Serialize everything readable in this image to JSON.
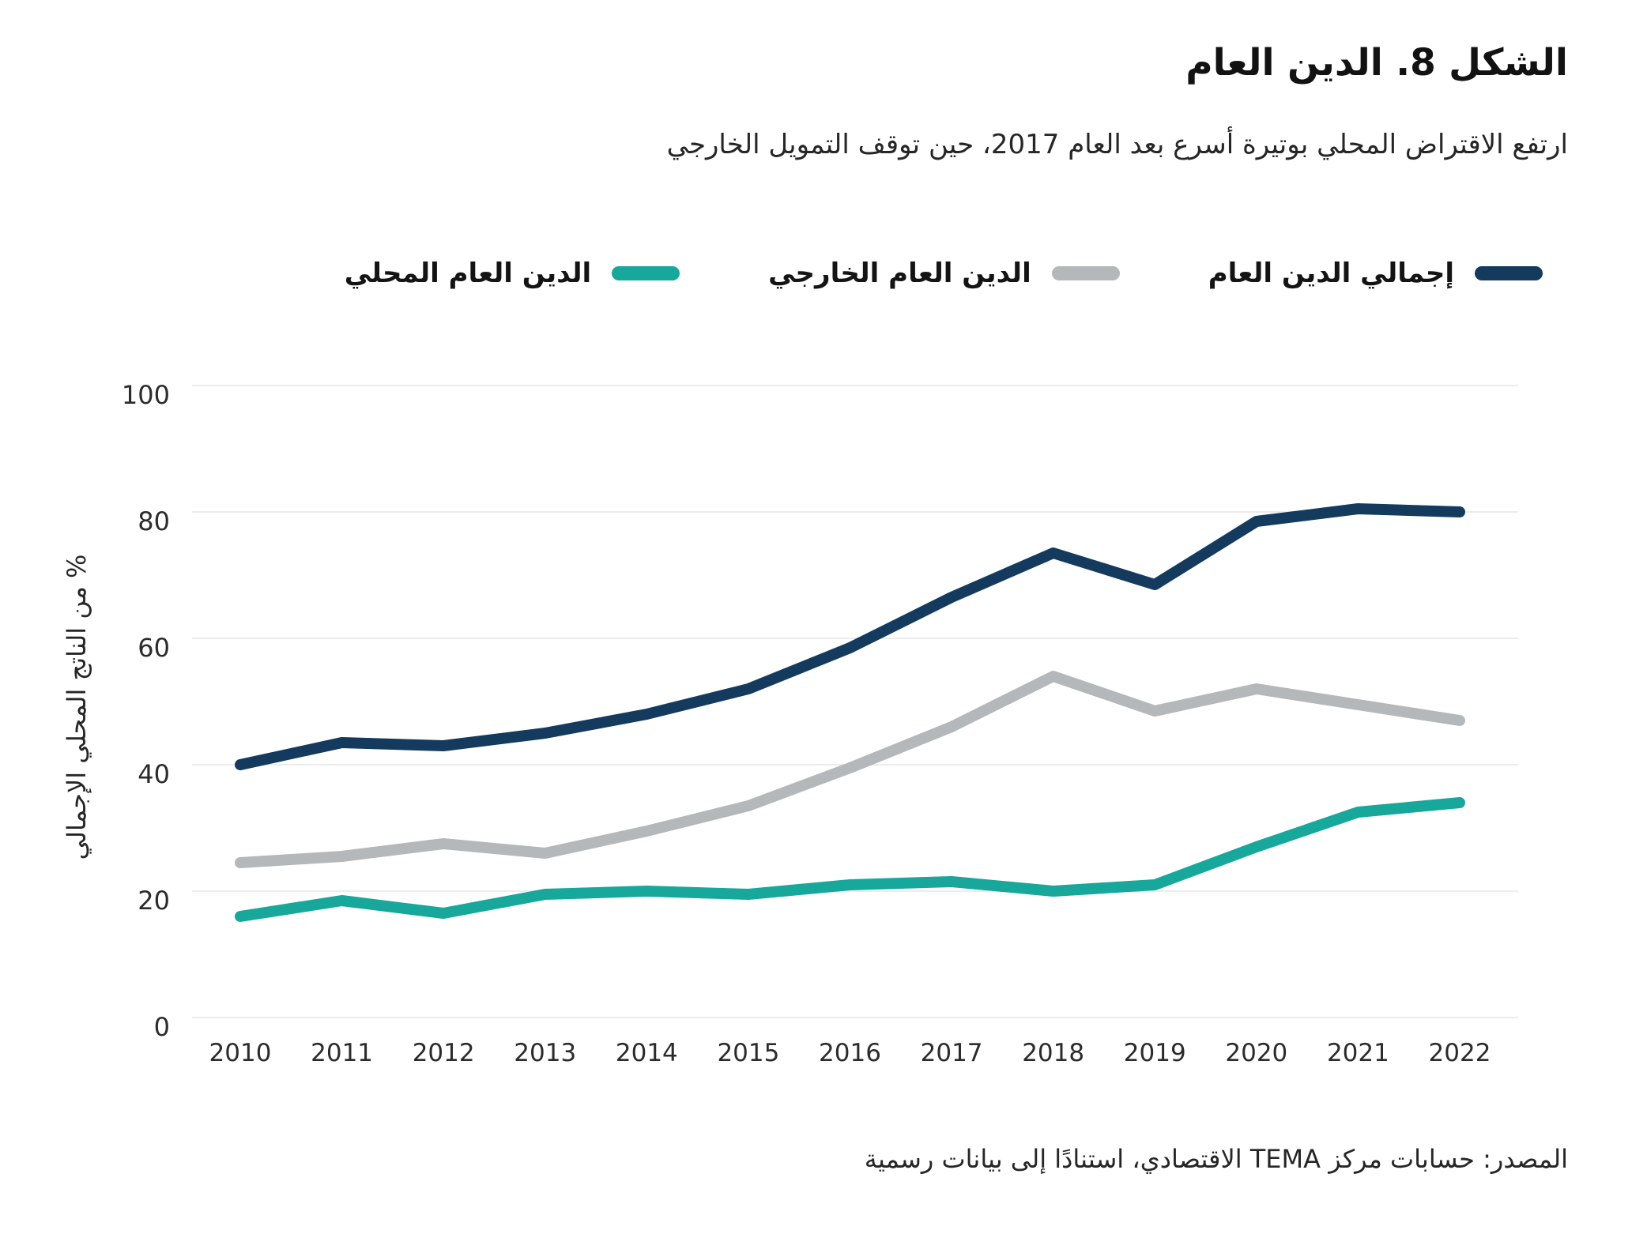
{
  "chart_data": {
    "type": "line",
    "title": "الشكل 8. الدين العام",
    "subtitle": "ارتفع الاقتراض المحلي بوتيرة أسرع بعد العام 2017، حين توقف التمويل الخارجي",
    "source": "المصدر: حسابات مركز TEMA الاقتصادي، استنادًا إلى بيانات رسمية",
    "xlabel": "",
    "ylabel": "% من الناتج المحلي الإجمالي",
    "x": [
      2010,
      2011,
      2012,
      2013,
      2014,
      2015,
      2016,
      2017,
      2018,
      2019,
      2020,
      2021,
      2022
    ],
    "series": [
      {
        "name": "إجمالي الدين العام",
        "color": "#143a5e",
        "values": [
          40,
          43.5,
          43,
          45,
          48,
          52,
          58.5,
          66.5,
          73.5,
          68.5,
          78.5,
          80.5,
          80
        ]
      },
      {
        "name": "الدين العام الخارجي",
        "color": "#b5b8bb",
        "values": [
          24.5,
          25.5,
          27.5,
          26,
          29.5,
          33.5,
          39.5,
          46,
          54,
          48.5,
          52,
          49.5,
          47
        ]
      },
      {
        "name": "الدين العام المحلي",
        "color": "#17a79b",
        "values": [
          16,
          18.5,
          16.5,
          19.5,
          20,
          19.5,
          21,
          21.5,
          20,
          21,
          27,
          32.5,
          34
        ]
      }
    ],
    "yticks": [
      0,
      20,
      40,
      60,
      80,
      100
    ],
    "ylim": [
      0,
      100
    ],
    "grid": true,
    "gridline_color": "#ececec",
    "legend_position": "top"
  }
}
